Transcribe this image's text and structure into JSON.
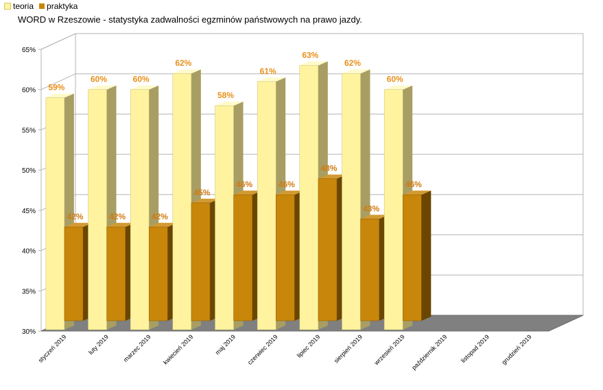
{
  "legend": {
    "items": [
      {
        "label": "teoria",
        "color": "#fff3a0"
      },
      {
        "label": "praktyka",
        "color": "#c8860a"
      }
    ]
  },
  "chart_data": {
    "type": "bar",
    "title": "WORD w Rzeszowie - statystyka zadwalności egzminów państwowych na prawo jazdy.",
    "xlabel": "",
    "ylabel": "",
    "ylim": [
      30,
      65
    ],
    "yticks": [
      "30%",
      "35%",
      "40%",
      "45%",
      "50%",
      "55%",
      "60%",
      "65%"
    ],
    "grid": true,
    "legend_position": "top-left",
    "categories": [
      "styczeń 2019",
      "luty 2019",
      "marzec 2019",
      "kwiecień 2019",
      "maj 2019",
      "czerwiec 2019",
      "lipiec 2019",
      "sierpień 2019",
      "wrzesień 2019",
      "październik 2019",
      "listopad 2019",
      "grudzień 2019"
    ],
    "series": [
      {
        "name": "teoria",
        "color": "#fff3a0",
        "values": [
          59,
          60,
          60,
          62,
          58,
          61,
          63,
          62,
          60,
          null,
          null,
          null
        ],
        "labels": [
          "59%",
          "60%",
          "60%",
          "62%",
          "58%",
          "61%",
          "63%",
          "62%",
          "60%",
          "",
          "",
          ""
        ]
      },
      {
        "name": "praktyka",
        "color": "#c8860a",
        "values": [
          42,
          42,
          42,
          45,
          46,
          46,
          48,
          43,
          46,
          null,
          null,
          null
        ],
        "labels": [
          "42%",
          "42%",
          "42%",
          "45%",
          "46%",
          "46%",
          "48%",
          "43%",
          "46%",
          "",
          "",
          ""
        ]
      }
    ]
  }
}
